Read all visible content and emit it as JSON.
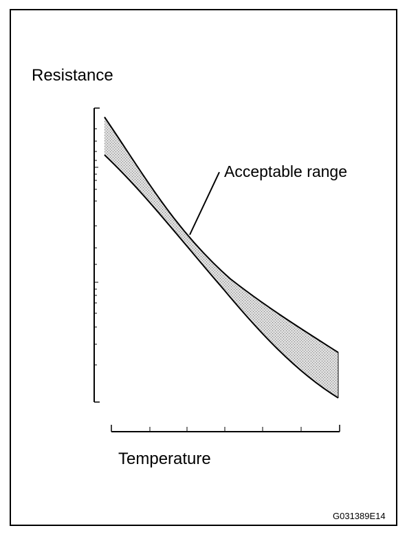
{
  "labels": {
    "y_axis": "Resistance",
    "x_axis": "Temperature",
    "band": "Acceptable range",
    "figure_code": "G031389E14"
  },
  "colors": {
    "ink": "#000000",
    "band_fill": "#c9c9c9",
    "background": "#ffffff"
  }
}
